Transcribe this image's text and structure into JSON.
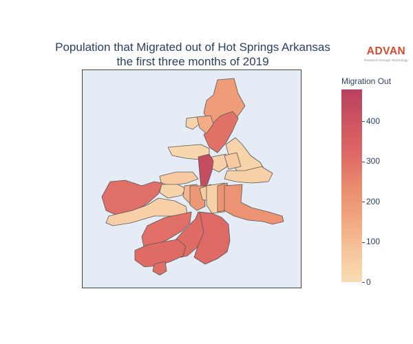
{
  "title": {
    "line1": "Population that Migrated out of Hot Springs Arkansas",
    "line2": "the first three months of 2019"
  },
  "logo": {
    "wordmark": "ADVAN",
    "tagline": "Research through Technology",
    "color": "#d4492a"
  },
  "legend": {
    "title": "Migration Out",
    "range": [
      0,
      478
    ],
    "tick_values": [
      0,
      100,
      200,
      300,
      400
    ],
    "tick_labels": [
      "0",
      "100",
      "200",
      "300",
      "400"
    ],
    "colorscale": [
      "#f9ddb4",
      "#f6c49b",
      "#f2a47e",
      "#e98b6f",
      "#dd6864",
      "#cd5561",
      "#b8405f"
    ]
  },
  "chart_data": {
    "type": "choropleth",
    "value_label": "Migration Out",
    "regions": [
      {
        "name": "Northern extension",
        "value": 185
      },
      {
        "name": "North-central",
        "value": 295
      },
      {
        "name": "Northwest small area",
        "value": 30
      },
      {
        "name": "North small area",
        "value": 140
      },
      {
        "name": "Northwest strip",
        "value": 20
      },
      {
        "name": "Northeast area",
        "value": 30
      },
      {
        "name": "East block A",
        "value": 40
      },
      {
        "name": "East block B",
        "value": 60
      },
      {
        "name": "East strip",
        "value": 40
      },
      {
        "name": "Downtown core",
        "value": 430
      },
      {
        "name": "Central west block",
        "value": 60
      },
      {
        "name": "West-central small",
        "value": 30
      },
      {
        "name": "Central small A",
        "value": 120
      },
      {
        "name": "Central small B",
        "value": 200
      },
      {
        "name": "Central small C",
        "value": 55
      },
      {
        "name": "Central block",
        "value": 40
      },
      {
        "name": "Southeast area",
        "value": 210
      },
      {
        "name": "Southeast east arm",
        "value": 215
      },
      {
        "name": "West large area",
        "value": 300
      },
      {
        "name": "Southwest middle strip",
        "value": 40
      },
      {
        "name": "Southwest block",
        "value": 300
      },
      {
        "name": "South-central large",
        "value": 310
      },
      {
        "name": "South block",
        "value": 315
      },
      {
        "name": "Southern tail",
        "value": 310
      },
      {
        "name": "Far south area",
        "value": 300
      }
    ]
  }
}
